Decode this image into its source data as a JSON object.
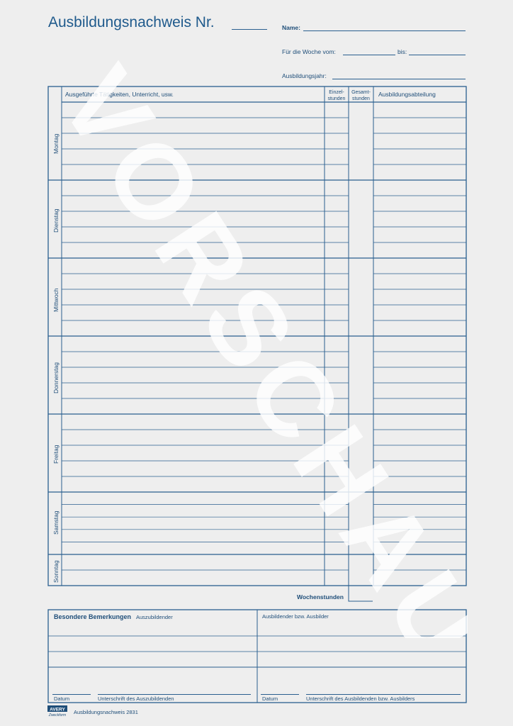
{
  "header": {
    "title": "Ausbildungsnachweis Nr.",
    "name_label": "Name:",
    "week_label": "Für die Woche vom:",
    "until_label": "bis:",
    "year_label": "Ausbildungsjahr:"
  },
  "table": {
    "col_activities": "Ausgeführte Tätigkeiten, Unterricht, usw.",
    "col_single_hours": "Einzel-\nstunden",
    "col_total_hours": "Gesamt-\nstunden",
    "col_department": "Ausbildungsabteilung",
    "days": [
      "Montag",
      "Dienstag",
      "Mittwoch",
      "Donnerstag",
      "Freitag",
      "Samstag",
      "Sonntag"
    ],
    "weekly_hours_label": "Wochenstunden"
  },
  "remarks": {
    "title": "Besondere Bemerkungen",
    "trainee_label": "Auszubildender",
    "trainer_label": "Ausbildender bzw. Ausbilder",
    "date_label_left": "Datum",
    "signature_trainee": "Unterschrift des Auszubildenden",
    "date_label_right": "Datum",
    "signature_trainer": "Unterschrift des Ausbildenden bzw. Ausbilders"
  },
  "footer": {
    "brand": "AVERY Zweckform",
    "form_name": "Ausbildungsnachweis 2831"
  },
  "watermark": "VORSCHAU",
  "colors": {
    "ink": "#1f4e79",
    "watermark": "#ffffff"
  }
}
